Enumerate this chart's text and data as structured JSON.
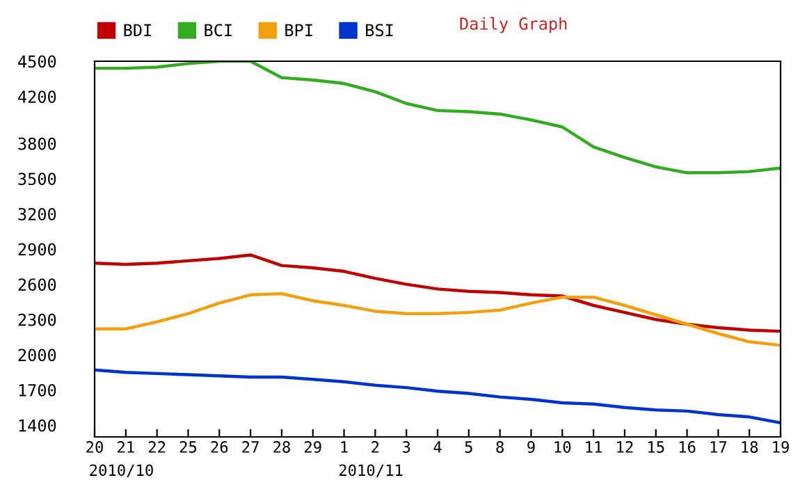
{
  "chart_data": {
    "type": "line",
    "title": "Daily Graph",
    "categories": [
      "20",
      "21",
      "22",
      "25",
      "26",
      "27",
      "28",
      "29",
      "1",
      "2",
      "3",
      "4",
      "5",
      "8",
      "9",
      "10",
      "11",
      "12",
      "15",
      "16",
      "17",
      "18",
      "19"
    ],
    "series": [
      {
        "name": "BDI",
        "color": "#c00000",
        "values": [
          2780,
          2770,
          2780,
          2800,
          2820,
          2850,
          2760,
          2740,
          2710,
          2650,
          2600,
          2560,
          2540,
          2530,
          2510,
          2500,
          2420,
          2360,
          2300,
          2260,
          2230,
          2210,
          2200
        ]
      },
      {
        "name": "BCI",
        "color": "#33aa22",
        "values": [
          4440,
          4440,
          4450,
          4480,
          4500,
          4500,
          4360,
          4340,
          4310,
          4240,
          4140,
          4080,
          4070,
          4050,
          4000,
          3940,
          3770,
          3680,
          3600,
          3550,
          3550,
          3560,
          3590
        ]
      },
      {
        "name": "BPI",
        "color": "#f0a010",
        "values": [
          2220,
          2220,
          2280,
          2350,
          2440,
          2510,
          2520,
          2460,
          2420,
          2370,
          2350,
          2350,
          2360,
          2380,
          2440,
          2490,
          2490,
          2420,
          2340,
          2260,
          2180,
          2110,
          2080
        ]
      },
      {
        "name": "BSI",
        "color": "#0033cc",
        "values": [
          1870,
          1850,
          1840,
          1830,
          1820,
          1810,
          1810,
          1790,
          1770,
          1740,
          1720,
          1690,
          1670,
          1640,
          1620,
          1590,
          1580,
          1550,
          1530,
          1520,
          1490,
          1470,
          1420
        ]
      }
    ],
    "ylim": [
      1300,
      4500
    ],
    "yticks": [
      1400,
      1700,
      2000,
      2300,
      2600,
      2900,
      3200,
      3500,
      3800,
      4200,
      4500
    ],
    "annotations": [
      "2010/10",
      "2010/11"
    ],
    "grid": false,
    "legend": "top left",
    "marker": "none",
    "line_style": "solid"
  }
}
